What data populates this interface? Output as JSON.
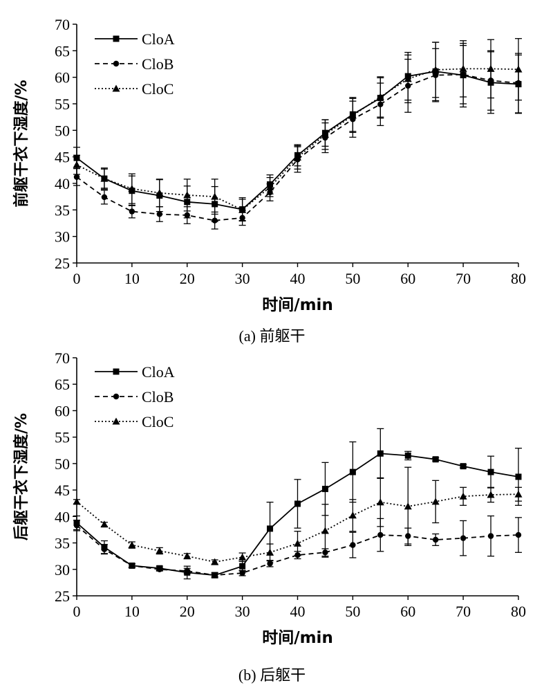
{
  "chart_data": [
    {
      "type": "line",
      "caption_label": "(a)",
      "caption_text": "前躯干",
      "xlabel": "时间/min",
      "ylabel": "前躯干衣下湿度/%",
      "xlim": [
        0,
        80
      ],
      "ylim": [
        25,
        70
      ],
      "x_ticks": [
        "0",
        "10",
        "20",
        "30",
        "40",
        "50",
        "60",
        "70",
        "80"
      ],
      "y_ticks": [
        "25",
        "30",
        "35",
        "40",
        "45",
        "50",
        "55",
        "60",
        "65",
        "70"
      ],
      "x": [
        0,
        5,
        10,
        15,
        20,
        25,
        30,
        35,
        40,
        45,
        50,
        55,
        60,
        65,
        70,
        75,
        80
      ],
      "legend_position": "top-left",
      "series": [
        {
          "name": "CloA",
          "marker": "square",
          "dash": "solid",
          "values": [
            44.8,
            40.9,
            38.6,
            37.7,
            36.5,
            36.1,
            35.1,
            39.8,
            45.3,
            49.5,
            53.0,
            56.1,
            60.2,
            61.1,
            60.4,
            59.0,
            58.7
          ],
          "errors": [
            2.0,
            2.0,
            2.8,
            3.0,
            3.0,
            3.3,
            2.2,
            1.8,
            2.0,
            2.5,
            3.2,
            3.8,
            4.5,
            5.5,
            6.0,
            5.8,
            5.5
          ]
        },
        {
          "name": "CloB",
          "marker": "circle",
          "dash": "dashed",
          "values": [
            41.2,
            37.4,
            34.7,
            34.2,
            34.0,
            33.0,
            33.5,
            38.3,
            44.5,
            48.6,
            52.1,
            54.9,
            58.4,
            60.4,
            60.5,
            59.4,
            58.9
          ],
          "errors": [
            1.6,
            1.3,
            1.2,
            1.4,
            1.6,
            1.6,
            1.4,
            1.6,
            2.4,
            2.8,
            3.4,
            4.0,
            5.0,
            5.0,
            5.5,
            5.6,
            5.6
          ]
        },
        {
          "name": "CloC",
          "marker": "triangle",
          "dash": "dotted",
          "values": [
            43.5,
            40.9,
            39.0,
            38.2,
            37.8,
            37.5,
            35.0,
            39.3,
            44.9,
            49.2,
            52.8,
            56.3,
            59.7,
            61.4,
            61.6,
            61.6,
            61.5
          ],
          "errors": [
            1.8,
            1.8,
            2.8,
            2.6,
            3.0,
            3.3,
            2.0,
            1.8,
            2.2,
            2.8,
            3.2,
            3.8,
            4.5,
            5.2,
            5.3,
            5.5,
            5.8
          ]
        }
      ]
    },
    {
      "type": "line",
      "caption_label": "(b)",
      "caption_text": "后躯干",
      "xlabel": "时间/min",
      "ylabel": "后躯干衣下湿度/%",
      "xlim": [
        0,
        80
      ],
      "ylim": [
        25,
        70
      ],
      "x_ticks": [
        "0",
        "10",
        "20",
        "30",
        "40",
        "50",
        "60",
        "70",
        "80"
      ],
      "y_ticks": [
        "25",
        "30",
        "35",
        "40",
        "45",
        "50",
        "55",
        "60",
        "65",
        "70"
      ],
      "x": [
        0,
        5,
        10,
        15,
        20,
        25,
        30,
        35,
        40,
        45,
        50,
        55,
        60,
        65,
        70,
        75,
        80
      ],
      "legend_position": "top-left",
      "series": [
        {
          "name": "CloA",
          "marker": "square",
          "dash": "solid",
          "values": [
            38.8,
            34.2,
            30.7,
            30.2,
            29.4,
            28.9,
            30.6,
            37.7,
            42.4,
            45.2,
            48.4,
            51.9,
            51.5,
            50.8,
            49.5,
            48.4,
            47.5
          ],
          "errors": [
            1.3,
            1.2,
            0.4,
            0.4,
            1.2,
            0.5,
            0.9,
            5.0,
            4.6,
            5.0,
            5.7,
            4.7,
            0.8,
            0.3,
            0.3,
            3.0,
            5.4
          ]
        },
        {
          "name": "CloB",
          "marker": "circle",
          "dash": "dashed",
          "values": [
            38.3,
            33.8,
            30.7,
            30.0,
            29.7,
            28.9,
            29.3,
            31.1,
            32.7,
            33.2,
            34.6,
            36.5,
            36.3,
            35.6,
            35.9,
            36.3,
            36.5
          ],
          "errors": [
            1.0,
            0.9,
            0.3,
            0.3,
            0.5,
            0.3,
            0.5,
            0.6,
            0.7,
            0.7,
            2.4,
            3.1,
            1.5,
            1.1,
            3.3,
            3.8,
            3.3
          ]
        },
        {
          "name": "CloC",
          "marker": "triangle",
          "dash": "dotted",
          "values": [
            42.8,
            38.5,
            34.6,
            33.5,
            32.5,
            31.4,
            32.3,
            33.2,
            34.9,
            37.3,
            40.2,
            42.7,
            41.9,
            42.8,
            43.8,
            44.1,
            44.2
          ],
          "errors": [
            0.4,
            0.4,
            0.6,
            0.6,
            0.5,
            0.4,
            0.8,
            1.6,
            2.3,
            5.0,
            3.0,
            4.6,
            7.4,
            4.0,
            1.7,
            1.4,
            1.3
          ]
        }
      ]
    }
  ]
}
